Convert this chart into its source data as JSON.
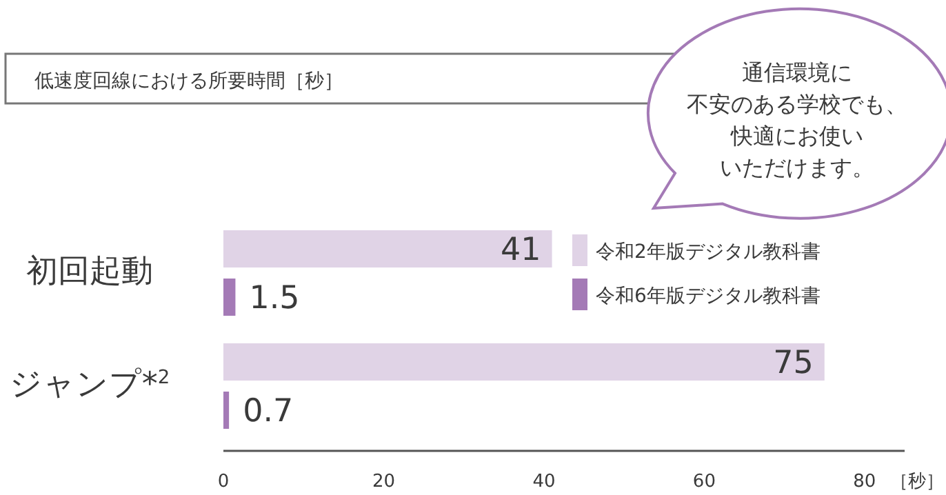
{
  "chart_data": {
    "type": "bar",
    "orientation": "horizontal",
    "title": "低速度回線における所要時間［秒］",
    "xlabel": "［秒］",
    "categories": [
      "初回起動",
      "ジャンプ*$^{2}$"
    ],
    "series": [
      {
        "name": "令和2年版デジタル教科書",
        "color": "#e0d3e6",
        "values": [
          41,
          75
        ]
      },
      {
        "name": "令和6年版デジタル教科書",
        "color": "#a47ab6",
        "values": [
          1.5,
          0.7
        ]
      }
    ],
    "xlim": [
      0,
      85
    ],
    "xticks": [
      0,
      20,
      40,
      60,
      80
    ],
    "data_labels": true,
    "legend": "top right",
    "grid": false,
    "annotations": [
      "通信環境に",
      "不安のある学校でも、",
      "快適にお使い",
      "いただけます。"
    ]
  }
}
